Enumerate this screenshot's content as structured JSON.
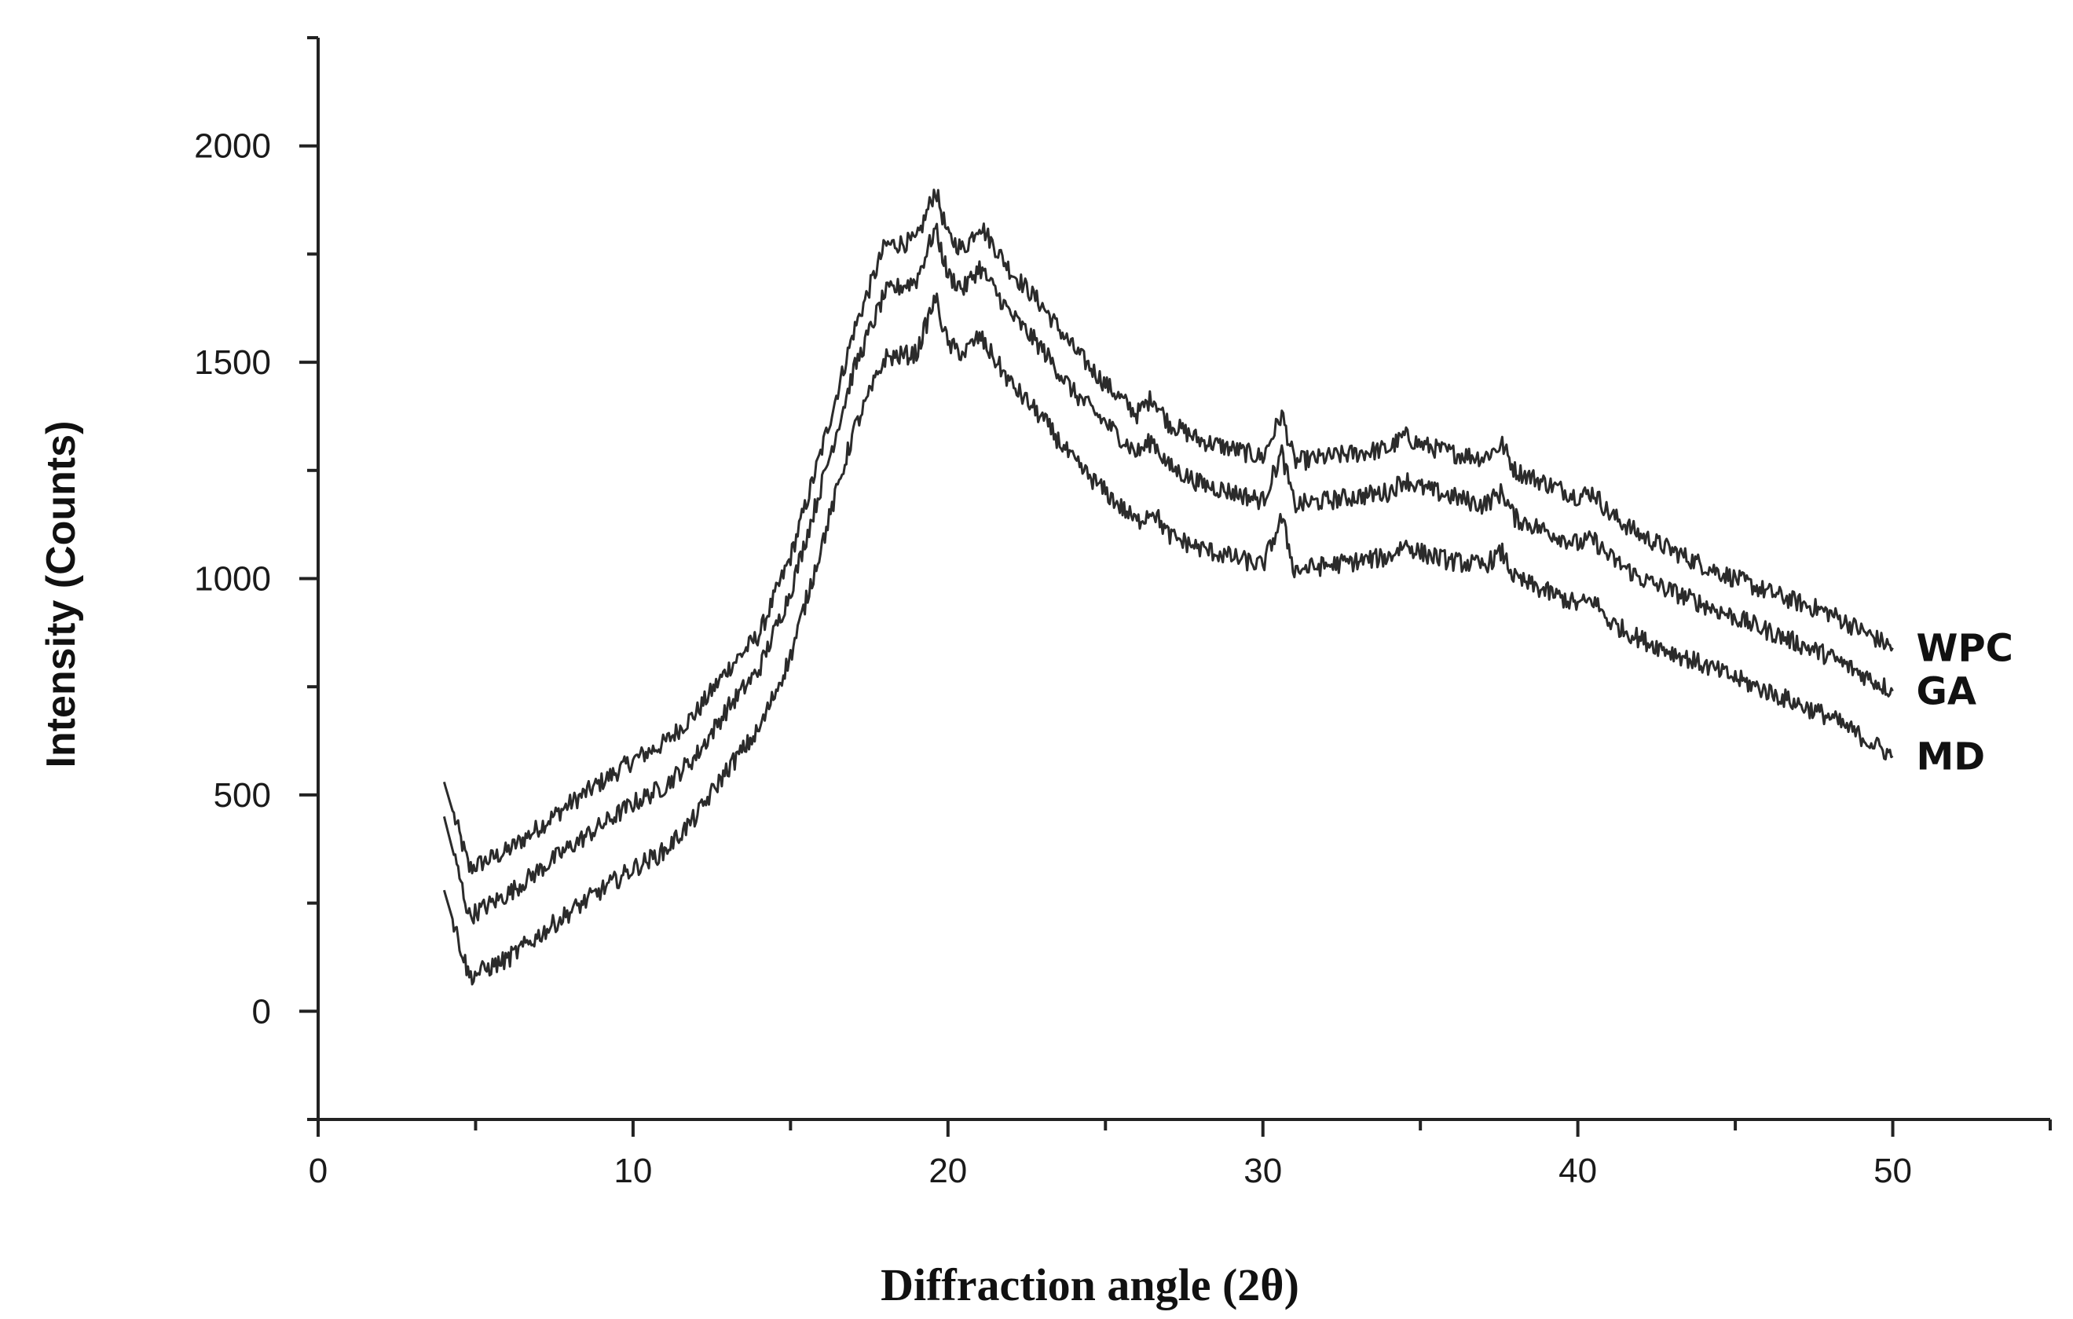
{
  "chart_data": {
    "type": "line",
    "title": "",
    "xlabel": "Diffraction angle (2θ)",
    "ylabel": "Intensity (Counts)",
    "xlim": [
      0,
      55
    ],
    "ylim": [
      -250,
      2250
    ],
    "xticks": [
      0,
      10,
      20,
      30,
      40,
      50
    ],
    "yticks": [
      0,
      500,
      1000,
      1500,
      2000
    ],
    "x_tick_labels": [
      "0",
      "10",
      "20",
      "30",
      "40",
      "50"
    ],
    "y_tick_labels": [
      "0",
      "500",
      "1000",
      "1500",
      "2000"
    ],
    "grid": false,
    "legend": "inline labels at right end of each curve",
    "line_color": "#2b2b2b",
    "series": [
      {
        "name": "WPC",
        "x": [
          4.0,
          4.8,
          6,
          8,
          10,
          11,
          12,
          13,
          14,
          15,
          16,
          17,
          18,
          19,
          19.6,
          20,
          20.5,
          21,
          22,
          23,
          24,
          25,
          26,
          26.5,
          27,
          28,
          29,
          30,
          30.6,
          31,
          32,
          33,
          34,
          34.5,
          35,
          36,
          37,
          37.6,
          38,
          39,
          40,
          40.5,
          41,
          42,
          44,
          46,
          48,
          50
        ],
        "y": [
          530,
          330,
          370,
          480,
          580,
          620,
          690,
          790,
          870,
          1050,
          1300,
          1570,
          1770,
          1780,
          1900,
          1790,
          1760,
          1820,
          1710,
          1630,
          1530,
          1450,
          1380,
          1420,
          1360,
          1320,
          1300,
          1280,
          1380,
          1270,
          1280,
          1290,
          1300,
          1330,
          1310,
          1290,
          1280,
          1310,
          1250,
          1220,
          1190,
          1200,
          1150,
          1100,
          1030,
          970,
          920,
          840
        ]
      },
      {
        "name": "GA",
        "x": [
          4.0,
          4.8,
          6,
          8,
          10,
          11,
          12,
          13,
          14,
          15,
          16,
          17,
          18,
          19,
          19.6,
          20,
          20.5,
          21,
          22,
          23,
          24,
          25,
          26,
          26.5,
          27,
          28,
          29,
          30,
          30.6,
          31,
          32,
          33,
          34,
          34.5,
          35,
          36,
          37,
          37.6,
          38,
          39,
          40,
          40.5,
          41,
          42,
          44,
          46,
          48,
          50
        ],
        "y": [
          450,
          220,
          270,
          380,
          480,
          520,
          590,
          700,
          790,
          970,
          1220,
          1480,
          1660,
          1690,
          1810,
          1700,
          1670,
          1720,
          1610,
          1530,
          1430,
          1360,
          1290,
          1320,
          1260,
          1220,
          1200,
          1180,
          1290,
          1170,
          1180,
          1190,
          1200,
          1230,
          1210,
          1190,
          1170,
          1200,
          1140,
          1110,
          1080,
          1090,
          1050,
          1000,
          940,
          880,
          820,
          740
        ]
      },
      {
        "name": "MD",
        "x": [
          4.0,
          4.8,
          6,
          8,
          10,
          11,
          12,
          13,
          14,
          15,
          16,
          17,
          18,
          19,
          19.6,
          20,
          20.5,
          21,
          22,
          23,
          24,
          25,
          26,
          26.5,
          27,
          28,
          29,
          30,
          30.6,
          31,
          32,
          33,
          34,
          34.5,
          35,
          36,
          37,
          37.6,
          38,
          39,
          40,
          40.5,
          41,
          42,
          44,
          46,
          48,
          50
        ],
        "y": [
          280,
          80,
          120,
          230,
          330,
          370,
          450,
          560,
          650,
          820,
          1080,
          1340,
          1510,
          1520,
          1650,
          1540,
          1520,
          1560,
          1450,
          1370,
          1270,
          1200,
          1130,
          1160,
          1100,
          1070,
          1050,
          1030,
          1140,
          1020,
          1030,
          1040,
          1050,
          1080,
          1060,
          1040,
          1030,
          1060,
          1000,
          970,
          940,
          950,
          900,
          860,
          800,
          740,
          680,
          590
        ]
      }
    ]
  }
}
